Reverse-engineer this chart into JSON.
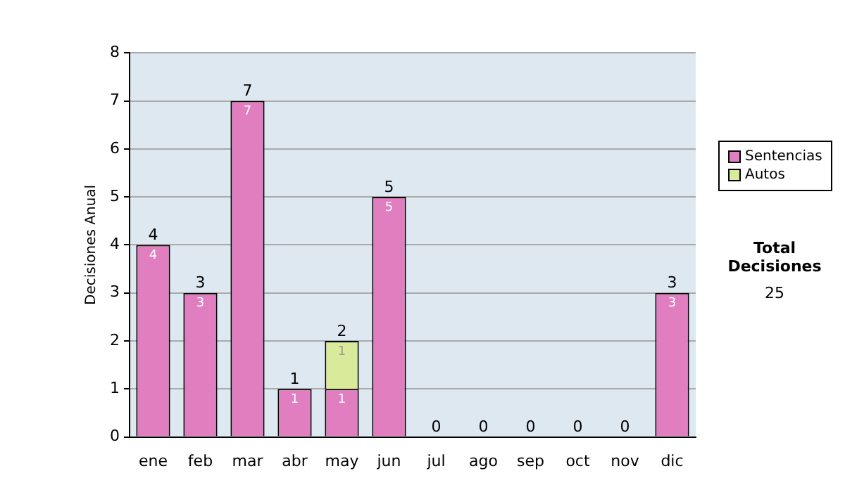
{
  "chart_data": {
    "type": "bar",
    "ylabel": "Decisiones Anual",
    "categories": [
      "ene",
      "feb",
      "mar",
      "abr",
      "may",
      "jun",
      "jul",
      "ago",
      "sep",
      "oct",
      "nov",
      "dic"
    ],
    "stacked": true,
    "series": [
      {
        "name": "Sentencias",
        "color": "#e07ec0",
        "values": [
          4,
          3,
          7,
          1,
          1,
          5,
          0,
          0,
          0,
          0,
          0,
          3
        ],
        "value_labels": [
          "4",
          "3",
          "7",
          "1",
          "1",
          "5",
          null,
          null,
          null,
          null,
          null,
          "3"
        ]
      },
      {
        "name": "Autos",
        "color": "#d9eb9a",
        "values": [
          0,
          0,
          0,
          0,
          1,
          0,
          0,
          0,
          0,
          0,
          0,
          0
        ],
        "value_labels": [
          null,
          null,
          null,
          null,
          "1",
          null,
          null,
          null,
          null,
          null,
          null,
          null
        ]
      }
    ],
    "totals": [
      "4",
      "3",
      "7",
      "1",
      "2",
      "5",
      "0",
      "0",
      "0",
      "0",
      "0",
      "3"
    ],
    "ylim": [
      0,
      8
    ],
    "yticks": [
      0,
      1,
      2,
      3,
      4,
      5,
      6,
      7,
      8
    ],
    "grid": "y",
    "legend": "right",
    "annotations": [
      "Total Decisiones",
      "25"
    ]
  }
}
